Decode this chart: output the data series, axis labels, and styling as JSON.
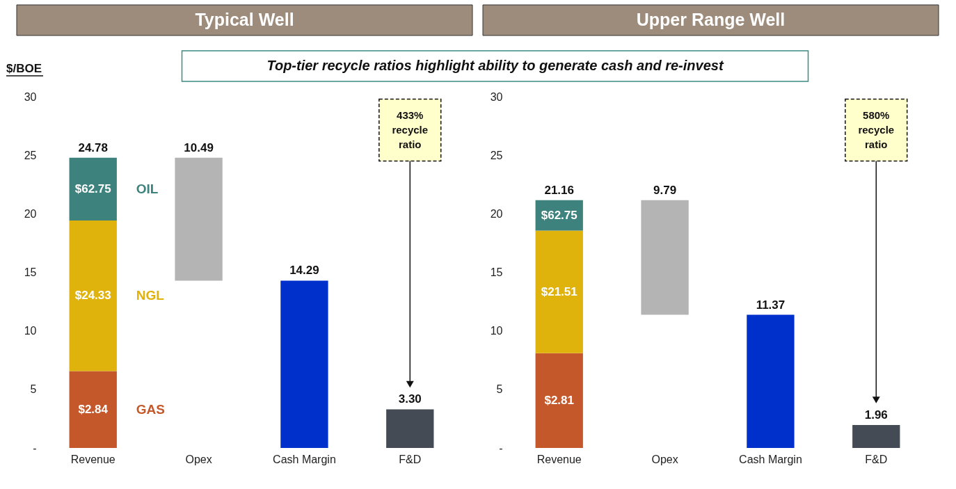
{
  "chart_data": [
    {
      "type": "bar",
      "stacked": true,
      "title": "Typical Well",
      "subtitle": "Top-tier recycle ratios highlight ability to generate cash and re-invest",
      "ylabel": "$/BOE",
      "categories": [
        "Revenue",
        "Opex",
        "Cash Margin",
        "F&D"
      ],
      "ylim": [
        0,
        30
      ],
      "yticks": [
        {
          "value": 0,
          "label": "-"
        },
        5,
        10,
        15,
        20,
        25,
        30
      ],
      "grid": false,
      "totals": [
        "24.78",
        "10.49",
        "14.29",
        "3.30"
      ],
      "series": [
        {
          "name": "GAS",
          "color": "#c4582a",
          "values": [
            6.56,
            null,
            null,
            null
          ]
        },
        {
          "name": "NGL",
          "color": "#dfb20c",
          "values": [
            12.87,
            null,
            null,
            null
          ]
        },
        {
          "name": "OIL",
          "color": "#3d827c",
          "values": [
            5.35,
            null,
            null,
            null
          ]
        },
        {
          "color": "#b4b4b4",
          "values": [
            null,
            10.49,
            null,
            null
          ],
          "base": [
            null,
            14.29,
            null,
            null
          ]
        },
        {
          "color": "#0030cc",
          "values": [
            null,
            null,
            14.29,
            null
          ]
        },
        {
          "color": "#454b55",
          "values": [
            null,
            null,
            null,
            3.3
          ]
        }
      ],
      "annotations": [
        "433% recycle ratio",
        "$2.84",
        "$24.33",
        "$62.75"
      ]
    },
    {
      "type": "bar",
      "stacked": true,
      "title": "Upper Range Well",
      "categories": [
        "Revenue",
        "Opex",
        "Cash Margin",
        "F&D"
      ],
      "ylim": [
        0,
        30
      ],
      "yticks": [
        {
          "value": 0,
          "label": "-"
        },
        5,
        10,
        15,
        20,
        25,
        30
      ],
      "grid": false,
      "totals": [
        "21.16",
        "9.79",
        "11.37",
        "1.96"
      ],
      "series": [
        {
          "color": "#c4582a",
          "values": [
            8.1,
            null,
            null,
            null
          ]
        },
        {
          "color": "#dfb20c",
          "values": [
            10.47,
            null,
            null,
            null
          ]
        },
        {
          "color": "#3d827c",
          "values": [
            2.59,
            null,
            null,
            null
          ]
        },
        {
          "color": "#b4b4b4",
          "values": [
            null,
            9.79,
            null,
            null
          ],
          "base": [
            null,
            11.37,
            null,
            null
          ]
        },
        {
          "color": "#0030cc",
          "values": [
            null,
            null,
            11.37,
            null
          ]
        },
        {
          "color": "#454b55",
          "values": [
            null,
            null,
            null,
            1.96
          ]
        }
      ],
      "annotations": [
        "580% recycle ratio",
        "$2.81",
        "$21.51",
        "$62.75"
      ]
    }
  ]
}
